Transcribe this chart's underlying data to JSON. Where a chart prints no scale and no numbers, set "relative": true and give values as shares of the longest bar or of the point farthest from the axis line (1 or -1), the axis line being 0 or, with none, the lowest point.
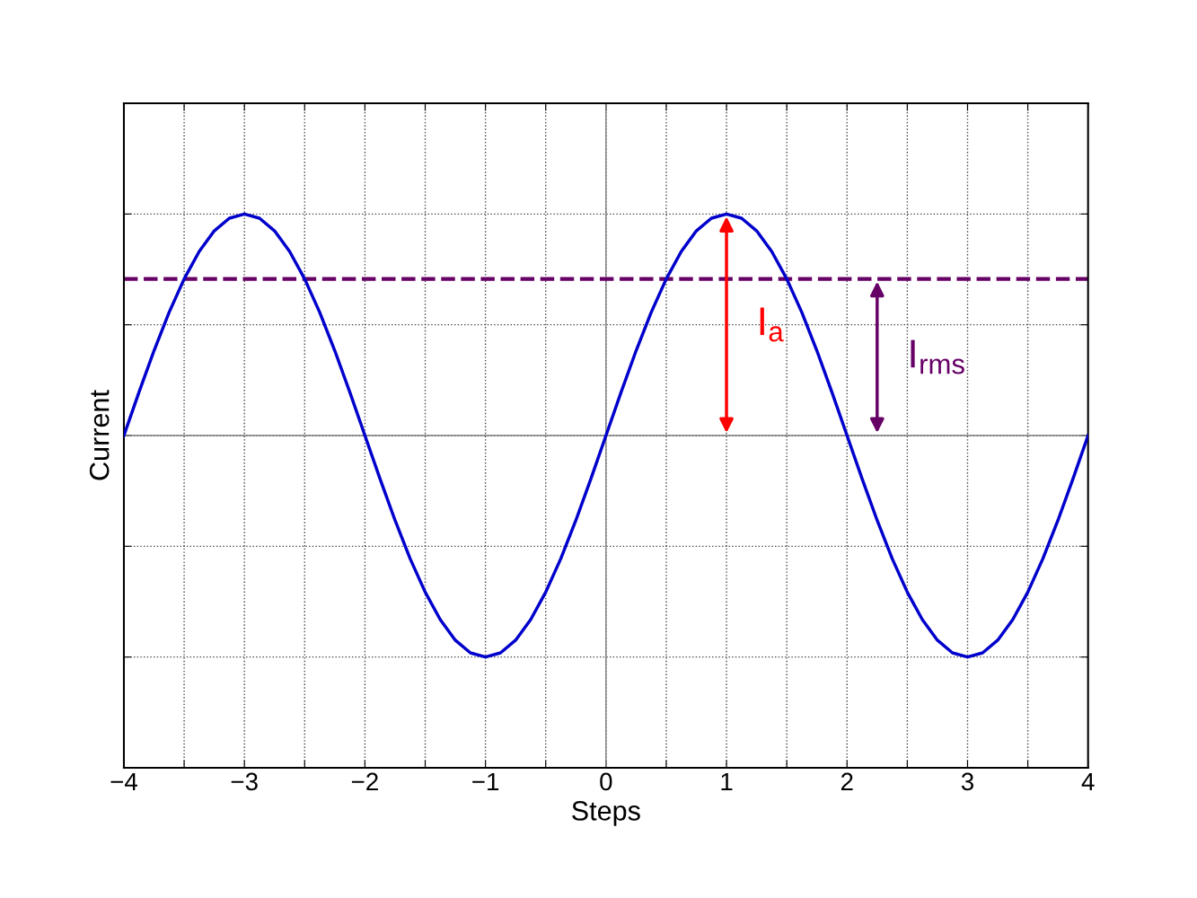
{
  "chart_data": {
    "type": "line",
    "xlabel": "Steps",
    "ylabel": "Current",
    "relative": true,
    "x": [
      -4,
      -3.875,
      -3.75,
      -3.625,
      -3.5,
      -3.375,
      -3.25,
      -3.125,
      -3,
      -2.875,
      -2.75,
      -2.625,
      -2.5,
      -2.375,
      -2.25,
      -2.125,
      -2,
      -1.875,
      -1.75,
      -1.625,
      -1.5,
      -1.375,
      -1.25,
      -1.125,
      -1,
      -0.875,
      -0.75,
      -0.625,
      -0.5,
      -0.375,
      -0.25,
      -0.125,
      0,
      0.125,
      0.25,
      0.375,
      0.5,
      0.625,
      0.75,
      0.875,
      1,
      1.125,
      1.25,
      1.375,
      1.5,
      1.625,
      1.75,
      1.875,
      2,
      2.125,
      2.25,
      2.375,
      2.5,
      2.625,
      2.75,
      2.875,
      3,
      3.125,
      3.25,
      3.375,
      3.5,
      3.625,
      3.75,
      3.875,
      4
    ],
    "series": [
      {
        "color": "#0000cc",
        "values": [
          0,
          0.195,
          0.383,
          0.556,
          0.707,
          0.831,
          0.924,
          0.981,
          1,
          0.981,
          0.924,
          0.831,
          0.707,
          0.556,
          0.383,
          0.195,
          0,
          -0.195,
          -0.383,
          -0.556,
          -0.707,
          -0.831,
          -0.924,
          -0.981,
          -1,
          -0.981,
          -0.924,
          -0.831,
          -0.707,
          -0.556,
          -0.383,
          -0.195,
          0,
          0.195,
          0.383,
          0.556,
          0.707,
          0.831,
          0.924,
          0.981,
          1,
          0.981,
          0.924,
          0.831,
          0.707,
          0.556,
          0.383,
          0.195,
          0,
          -0.195,
          -0.383,
          -0.556,
          -0.707,
          -0.831,
          -0.924,
          -0.981,
          -1,
          -0.981,
          -0.924,
          -0.831,
          -0.707,
          -0.556,
          -0.383,
          -0.195,
          0
        ]
      }
    ],
    "xlim": [
      -4,
      4
    ],
    "xticks": [
      {
        "value": -4,
        "label": "−4"
      },
      {
        "value": -3.5,
        "label": null
      },
      {
        "value": -3,
        "label": "−3"
      },
      {
        "value": -2.5,
        "label": null
      },
      {
        "value": -2,
        "label": "−2"
      },
      {
        "value": -1.5,
        "label": null
      },
      {
        "value": -1,
        "label": "−1"
      },
      {
        "value": -0.5,
        "label": null
      },
      0,
      {
        "value": 0.5,
        "label": null
      },
      1,
      {
        "value": 1.5,
        "label": null
      },
      2,
      {
        "value": 2.5,
        "label": null
      },
      3,
      {
        "value": 3.5,
        "label": null
      },
      4
    ],
    "ref_lines": [
      {
        "axis": "x",
        "value": 0,
        "color": "#808080",
        "line_style": "solid"
      },
      {
        "axis": "y",
        "value": 0,
        "color": "#808080",
        "line_style": "solid"
      },
      {
        "axis": "y",
        "value": 0.707,
        "color": "#660066",
        "line_style": "dashed"
      }
    ],
    "annotations": [
      {
        "text": "I$_{a}$",
        "x": 1,
        "y": 1
      },
      {
        "text": "I$_{rms}$",
        "x": 2.25,
        "y": 0.707
      }
    ],
    "grid": true,
    "marker": "none",
    "line_style": "solid",
    "legend": false
  }
}
